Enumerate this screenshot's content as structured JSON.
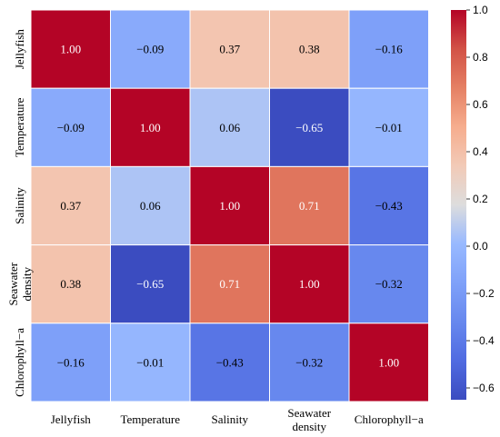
{
  "chart_data": {
    "type": "heatmap",
    "rows": [
      "Jellyfish",
      "Temperature",
      "Salinity",
      [
        "Seawater",
        "density"
      ],
      "Chlorophyll−a"
    ],
    "columns": [
      "Jellyfish",
      "Temperature",
      "Salinity",
      [
        "Seawater",
        "density"
      ],
      "Chlorophyll−a"
    ],
    "values": [
      [
        1.0,
        -0.09,
        0.37,
        0.38,
        -0.16
      ],
      [
        -0.09,
        1.0,
        0.06,
        -0.65,
        -0.01
      ],
      [
        0.37,
        0.06,
        1.0,
        0.71,
        -0.43
      ],
      [
        0.38,
        -0.65,
        0.71,
        1.0,
        -0.32
      ],
      [
        -0.16,
        -0.01,
        -0.43,
        -0.32,
        1.0
      ]
    ],
    "value_labels": [
      [
        "1.00",
        "−0.09",
        "0.37",
        "0.38",
        "−0.16"
      ],
      [
        "−0.09",
        "1.00",
        "0.06",
        "−0.65",
        "−0.01"
      ],
      [
        "0.37",
        "0.06",
        "1.00",
        "0.71",
        "−0.43"
      ],
      [
        "0.38",
        "−0.65",
        "0.71",
        "1.00",
        "−0.32"
      ],
      [
        "−0.16",
        "−0.01",
        "−0.43",
        "−0.32",
        "1.00"
      ]
    ],
    "colormap": "coolwarm",
    "color_range": [
      -0.65,
      1.0
    ],
    "colorbar_ticks": [
      "1.0",
      "0.8",
      "0.6",
      "0.4",
      "0.2",
      "0.0",
      "−0.2",
      "−0.4",
      "−0.6"
    ],
    "colorbar_tick_values": [
      1.0,
      0.8,
      0.6,
      0.4,
      0.2,
      0.0,
      -0.2,
      -0.4,
      -0.6
    ],
    "grid_lines": "white"
  }
}
